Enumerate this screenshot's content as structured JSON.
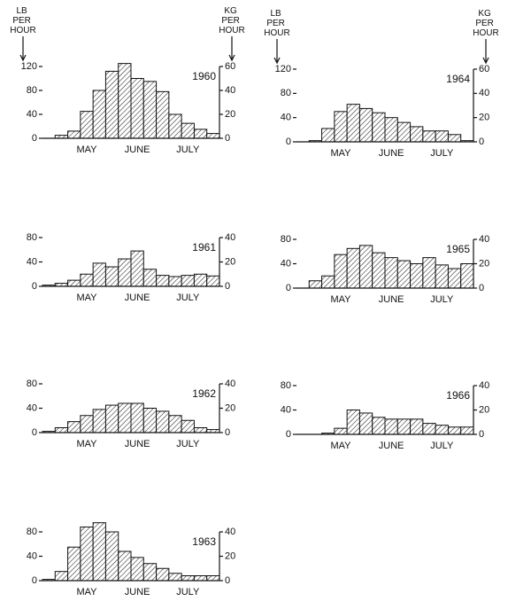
{
  "chart_data": [
    {
      "type": "bar",
      "title": "1960",
      "y_label": "LB PER HOUR",
      "y2_label": "KG PER HOUR",
      "categories": [
        null,
        null,
        null,
        "MAY",
        null,
        null,
        null,
        "JUNE",
        null,
        null,
        null,
        "JULY",
        null,
        null
      ],
      "values": [
        0,
        5,
        12,
        45,
        80,
        112,
        125,
        100,
        95,
        78,
        40,
        25,
        15,
        8
      ],
      "ylim": [
        0,
        120
      ],
      "yticks": [
        0,
        40,
        80,
        120
      ],
      "y2lim": [
        0,
        60
      ],
      "y2ticks": [
        0,
        20,
        40,
        60
      ]
    },
    {
      "type": "bar",
      "title": "1961",
      "categories": [
        null,
        null,
        null,
        "MAY",
        null,
        null,
        null,
        "JUNE",
        null,
        null,
        null,
        "JULY",
        null,
        null
      ],
      "values": [
        2,
        5,
        10,
        20,
        38,
        32,
        45,
        58,
        28,
        18,
        16,
        18,
        20,
        17
      ],
      "ylim": [
        0,
        80
      ],
      "yticks": [
        0,
        40,
        80
      ],
      "y2lim": [
        0,
        40
      ],
      "y2ticks": [
        0,
        20,
        40
      ]
    },
    {
      "type": "bar",
      "title": "1962",
      "categories": [
        null,
        null,
        null,
        "MAY",
        null,
        null,
        null,
        "JUNE",
        null,
        null,
        null,
        "JULY",
        null,
        null
      ],
      "values": [
        2,
        8,
        18,
        28,
        38,
        45,
        48,
        48,
        40,
        35,
        28,
        20,
        8,
        5
      ],
      "ylim": [
        0,
        80
      ],
      "yticks": [
        0,
        40,
        80
      ],
      "y2lim": [
        0,
        40
      ],
      "y2ticks": [
        0,
        20,
        40
      ]
    },
    {
      "type": "bar",
      "title": "1963",
      "categories": [
        null,
        null,
        null,
        "MAY",
        null,
        null,
        null,
        "JUNE",
        null,
        null,
        null,
        "JULY",
        null,
        null
      ],
      "values": [
        2,
        15,
        55,
        88,
        95,
        80,
        48,
        38,
        28,
        20,
        12,
        8,
        8,
        8
      ],
      "ylim": [
        0,
        80
      ],
      "yticks": [
        0,
        40,
        80
      ],
      "y2lim": [
        0,
        40
      ],
      "y2ticks": [
        0,
        20,
        40
      ]
    },
    {
      "type": "bar",
      "title": "1964",
      "y_label": "LB PER HOUR",
      "y2_label": "KG PER HOUR",
      "categories": [
        null,
        null,
        null,
        "MAY",
        null,
        null,
        null,
        "JUNE",
        null,
        null,
        null,
        "JULY",
        null,
        null
      ],
      "values": [
        0,
        2,
        22,
        50,
        62,
        55,
        48,
        40,
        32,
        25,
        18,
        18,
        12,
        2
      ],
      "ylim": [
        0,
        120
      ],
      "yticks": [
        0,
        40,
        80,
        120
      ],
      "y2lim": [
        0,
        60
      ],
      "y2ticks": [
        0,
        20,
        40,
        60
      ]
    },
    {
      "type": "bar",
      "title": "1965",
      "categories": [
        null,
        null,
        null,
        "MAY",
        null,
        null,
        null,
        "JUNE",
        null,
        null,
        null,
        "JULY",
        null,
        null
      ],
      "values": [
        0,
        12,
        20,
        55,
        65,
        70,
        58,
        50,
        45,
        40,
        50,
        38,
        32,
        40
      ],
      "ylim": [
        0,
        80
      ],
      "yticks": [
        0,
        40,
        80
      ],
      "y2lim": [
        0,
        40
      ],
      "y2ticks": [
        0,
        20,
        40
      ]
    },
    {
      "type": "bar",
      "title": "1966",
      "categories": [
        null,
        null,
        null,
        "MAY",
        null,
        null,
        null,
        "JUNE",
        null,
        null,
        null,
        "JULY",
        null,
        null
      ],
      "values": [
        0,
        0,
        2,
        10,
        40,
        35,
        28,
        25,
        25,
        25,
        18,
        15,
        12,
        12
      ],
      "ylim": [
        0,
        80
      ],
      "yticks": [
        0,
        40,
        80
      ],
      "y2lim": [
        0,
        40
      ],
      "y2ticks": [
        0,
        20,
        40
      ]
    }
  ]
}
